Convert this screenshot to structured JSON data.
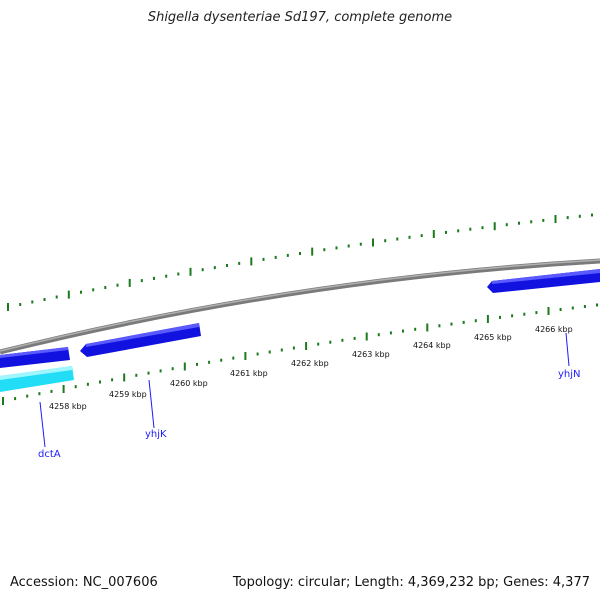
{
  "title": "Shigella dysenteriae Sd197, complete genome",
  "footer": {
    "accession": "Accession: NC_007606",
    "stats": "Topology: circular; Length: 4,369,232 bp; Genes: 4,377"
  },
  "kbp_labels": [
    "4258 kbp",
    "4259 kbp",
    "4260 kbp",
    "4261 kbp",
    "4262 kbp",
    "4263 kbp",
    "4264 kbp",
    "4265 kbp",
    "4266 kbp"
  ],
  "gene_labels": [
    "dctA",
    "yhjK",
    "yhjN"
  ],
  "colors": {
    "backbone": "#8c8c8c",
    "gene_forward": "#1414e6",
    "gene_reverse": "#33e8ff",
    "tick": "#1b7a1b",
    "gene_label": "#1a1aff"
  }
}
